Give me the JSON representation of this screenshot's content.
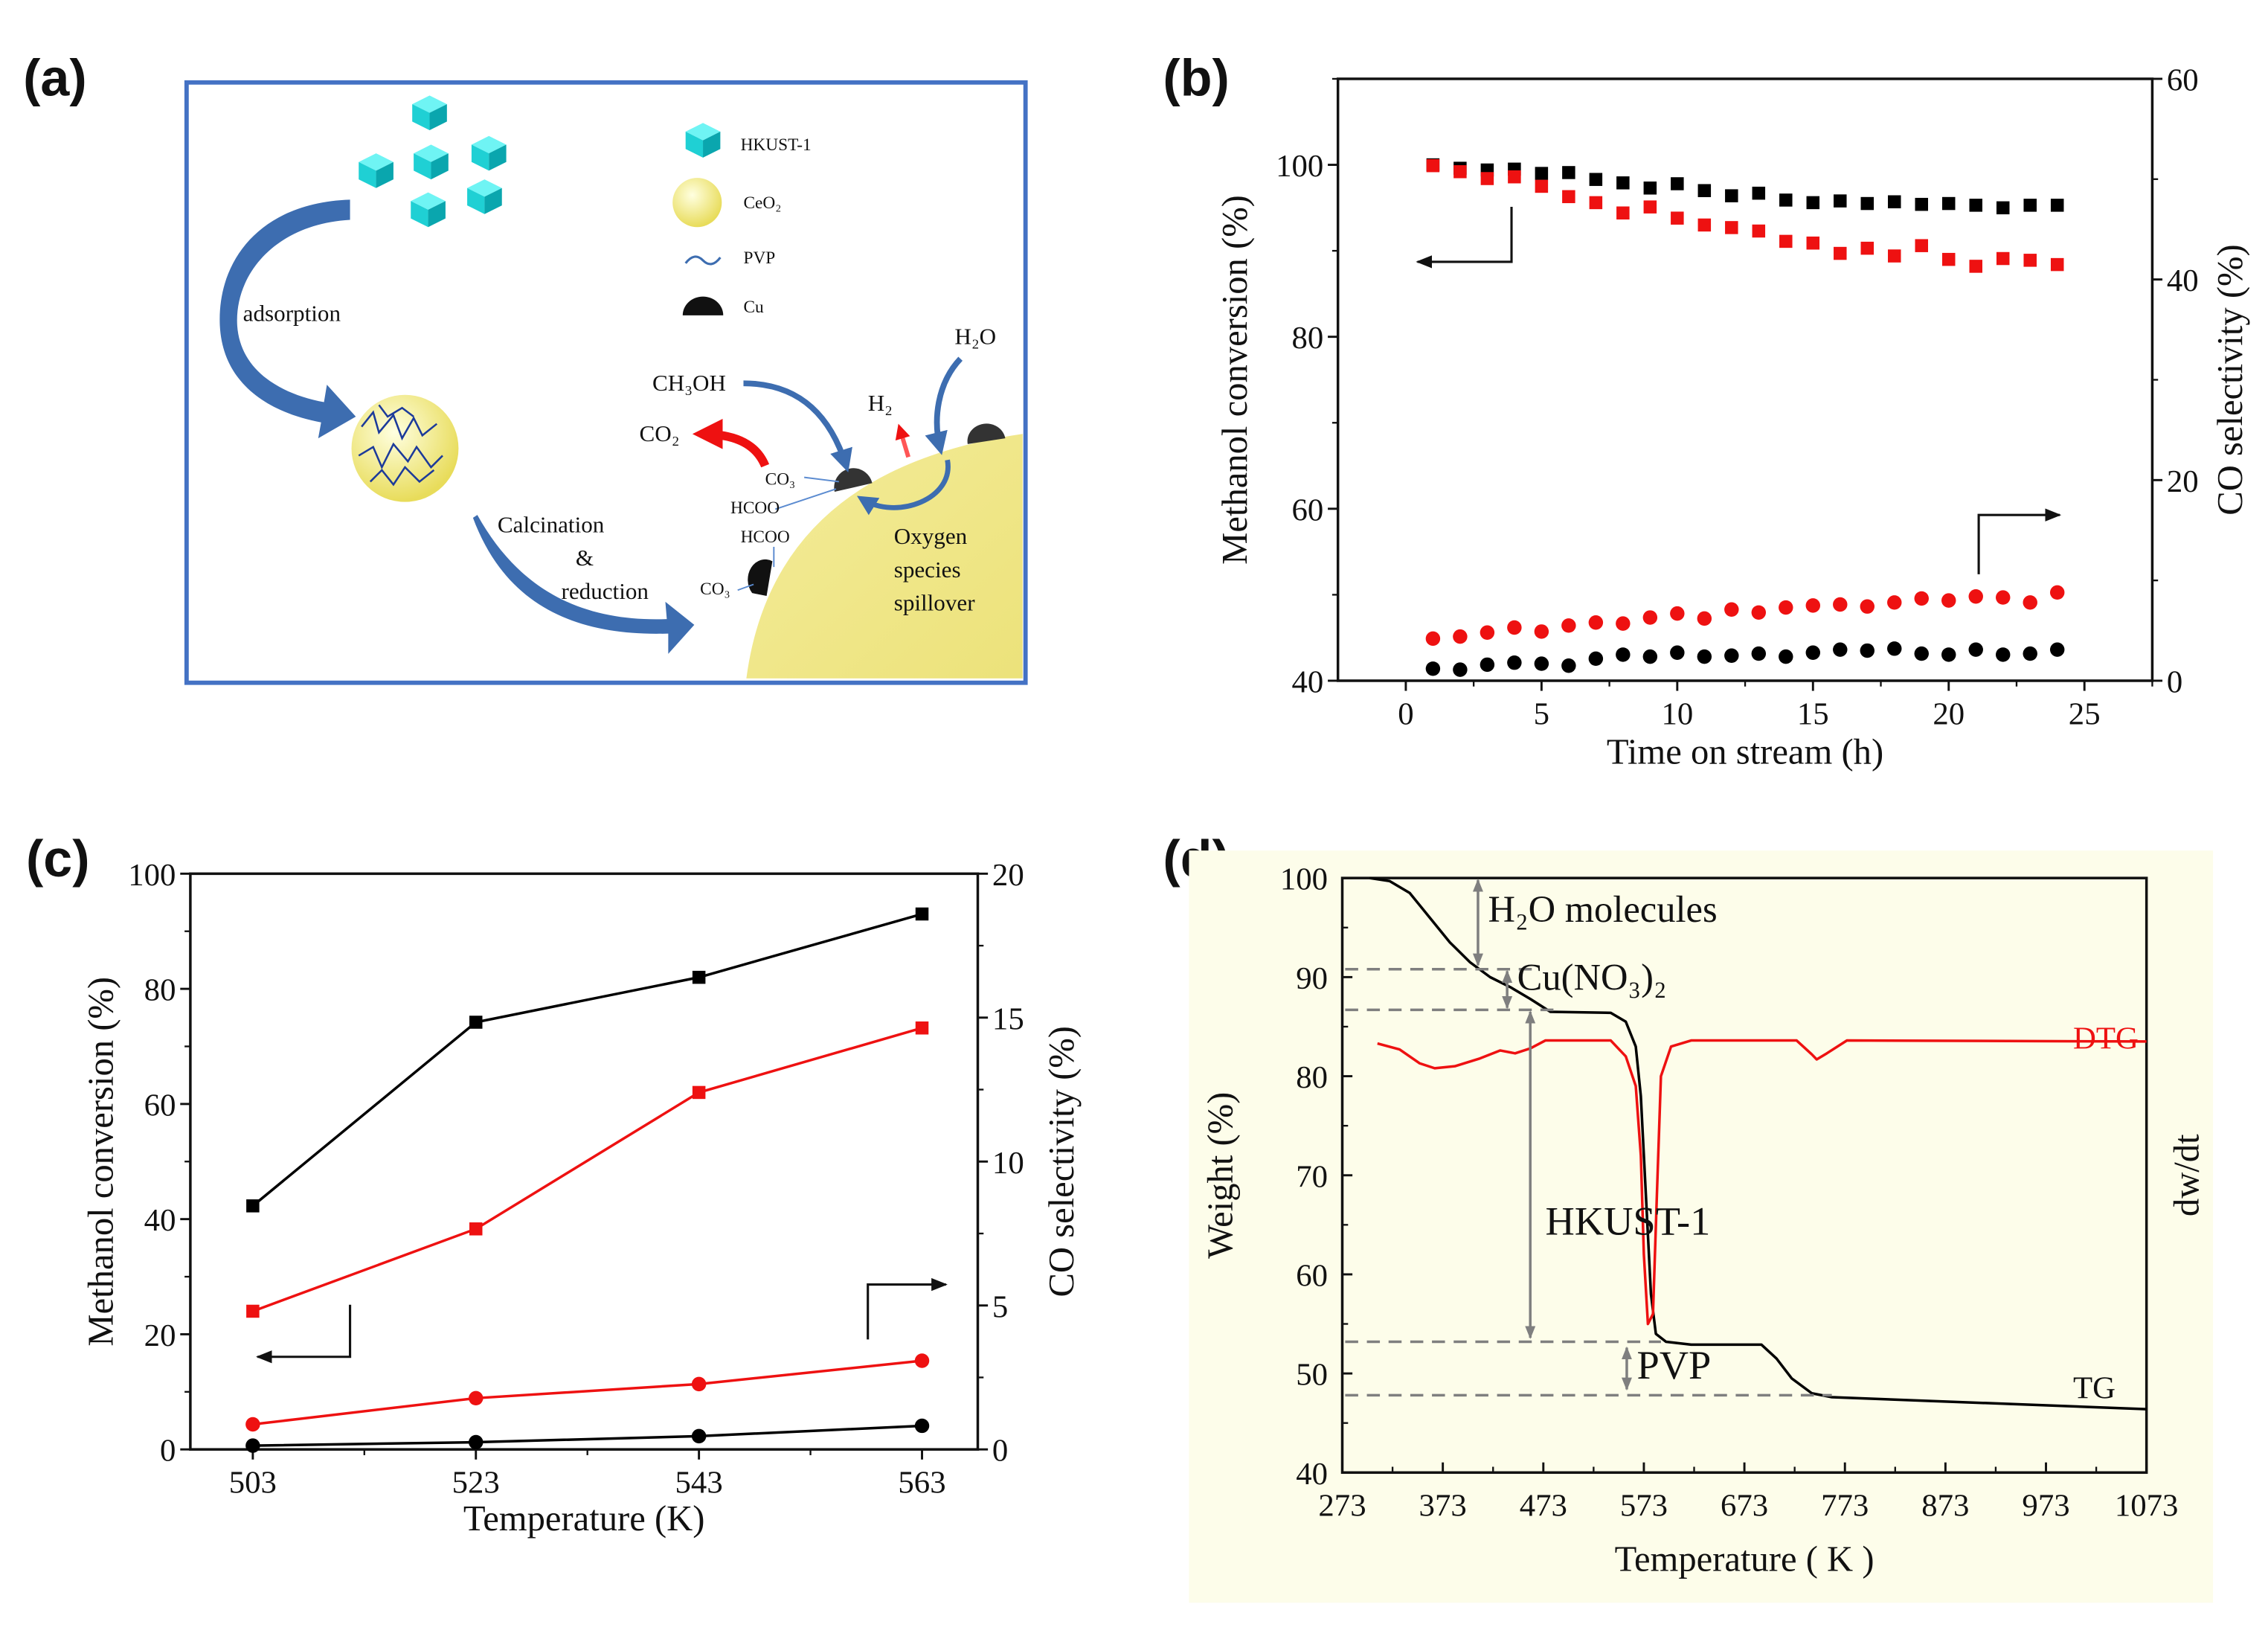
{
  "panel_labels": [
    "(a)",
    "(b)",
    "(c)",
    "(d)"
  ],
  "diagram": {
    "legend": [
      "HKUST-1",
      "CeO₂",
      "PVP",
      "Cu"
    ],
    "step1": "adsorption",
    "step2": [
      "Calcination",
      "&",
      "reduction"
    ],
    "species": {
      "methanol": "CH₃OH",
      "co2": "CO₂",
      "h2": "H₂",
      "h2o": "H₂O",
      "co3_top": "CO₃",
      "hcoo_1": "HCOO",
      "hcoo_2": "HCOO",
      "co3_bottom": "CO₃"
    },
    "spillover": [
      "Oxygen",
      "species",
      "spillover"
    ],
    "colors": {
      "frame": "#4472c4",
      "cube": "#19c8cc",
      "ceo2": "#f2e88a",
      "arrow": "#3d6db0",
      "red_arrow": "#ee1111"
    }
  },
  "chart_data": [
    {
      "type": "scatter",
      "panel": "(b)",
      "xlabel": "Time on stream (h)",
      "ylabel": "Methanol conversion (%)",
      "y2label": "CO selectivity (%)",
      "xlim": [
        -2.5,
        27.5
      ],
      "ylim": [
        40,
        110
      ],
      "y2lim": [
        0,
        60
      ],
      "xticks": [
        0,
        5,
        10,
        15,
        20,
        25
      ],
      "yticks": [
        40,
        60,
        80,
        100
      ],
      "y2ticks": [
        0,
        20,
        40,
        60
      ],
      "grid": false,
      "x": [
        1,
        2,
        3,
        4,
        5,
        6,
        7,
        8,
        9,
        10,
        11,
        12,
        13,
        14,
        15,
        16,
        17,
        18,
        19,
        20,
        21,
        22,
        23,
        24
      ],
      "series": [
        {
          "axis": "left",
          "marker": "square",
          "color": "#000000",
          "values": [
            100,
            99.6,
            99.4,
            99.5,
            99,
            99.1,
            98.3,
            97.9,
            97.3,
            97.8,
            97,
            96.4,
            96.7,
            95.9,
            95.6,
            95.8,
            95.5,
            95.7,
            95.4,
            95.5,
            95.3,
            95,
            95.3,
            95.3
          ]
        },
        {
          "axis": "left",
          "marker": "square",
          "color": "#ee1111",
          "values": [
            99.9,
            99.2,
            98.4,
            98.6,
            97.5,
            96.3,
            95.6,
            94.4,
            95.1,
            93.8,
            93,
            92.7,
            92.3,
            91.1,
            90.9,
            89.7,
            90.3,
            89.4,
            90.6,
            89,
            88.2,
            89.1,
            88.9,
            88.4
          ]
        },
        {
          "axis": "right",
          "marker": "circle",
          "color": "#ee1111",
          "values": [
            4.2,
            4.4,
            4.8,
            5.3,
            4.9,
            5.5,
            5.8,
            5.7,
            6.3,
            6.7,
            6.2,
            7.1,
            6.8,
            7.3,
            7.5,
            7.6,
            7.4,
            7.8,
            8.2,
            8,
            8.4,
            8.3,
            7.8,
            8.8
          ]
        },
        {
          "axis": "right",
          "marker": "circle",
          "color": "#000000",
          "values": [
            1.2,
            1.1,
            1.6,
            1.8,
            1.7,
            1.5,
            2.2,
            2.6,
            2.4,
            2.8,
            2.4,
            2.5,
            2.7,
            2.4,
            2.8,
            3.1,
            3,
            3.2,
            2.7,
            2.6,
            3.1,
            2.6,
            2.7,
            3.1
          ]
        }
      ]
    },
    {
      "type": "line",
      "panel": "(c)",
      "xlabel": "Temperature (K)",
      "ylabel": "Methanol conversion (%)",
      "y2label": "CO selectivity (%)",
      "xlim": [
        497.4,
        568
      ],
      "ylim": [
        0,
        100
      ],
      "y2lim": [
        0,
        20
      ],
      "xticks": [
        503,
        523,
        543,
        563
      ],
      "yticks": [
        0,
        20,
        40,
        60,
        80,
        100
      ],
      "y2ticks": [
        0,
        5,
        10,
        15,
        20
      ],
      "grid": false,
      "x": [
        503,
        523,
        543,
        563
      ],
      "series": [
        {
          "axis": "left",
          "marker": "square",
          "color": "#000000",
          "values": [
            42.3,
            74.2,
            82,
            93
          ]
        },
        {
          "axis": "left",
          "marker": "square",
          "color": "#ee1111",
          "values": [
            24,
            38.3,
            62,
            73.2
          ]
        },
        {
          "axis": "right",
          "marker": "circle",
          "color": "#ee1111",
          "values": [
            0.87,
            1.78,
            2.27,
            3.08
          ]
        },
        {
          "axis": "right",
          "marker": "circle",
          "color": "#000000",
          "values": [
            0.13,
            0.25,
            0.46,
            0.82
          ]
        }
      ]
    },
    {
      "type": "line",
      "panel": "(d)",
      "xlabel": "Temperature ( K )",
      "ylabel": "Weight (%)",
      "y2label": "dw/dt",
      "xlim": [
        273,
        1073
      ],
      "ylim": [
        40,
        100
      ],
      "xticks": [
        273,
        373,
        473,
        573,
        673,
        773,
        873,
        973,
        1073
      ],
      "yticks": [
        40,
        50,
        60,
        70,
        80,
        90,
        100
      ],
      "grid": false,
      "series": [
        {
          "name": "TG",
          "color": "#000000",
          "points": [
            [
              300,
              100
            ],
            [
              320,
              99.7
            ],
            [
              340,
              98.5
            ],
            [
              360,
              96
            ],
            [
              380,
              93.5
            ],
            [
              400,
              91.5
            ],
            [
              420,
              90
            ],
            [
              440,
              89
            ],
            [
              460,
              87.8
            ],
            [
              480,
              86.5
            ],
            [
              540,
              86.4
            ],
            [
              555,
              85.5
            ],
            [
              565,
              83
            ],
            [
              570,
              78
            ],
            [
              575,
              68
            ],
            [
              580,
              58
            ],
            [
              585,
              54
            ],
            [
              595,
              53.2
            ],
            [
              620,
              52.9
            ],
            [
              690,
              52.9
            ],
            [
              705,
              51.5
            ],
            [
              720,
              49.5
            ],
            [
              740,
              48
            ],
            [
              760,
              47.6
            ],
            [
              1073,
              46.4
            ]
          ]
        },
        {
          "name": "DTG",
          "color": "#ee1111",
          "points": [
            [
              308,
              83.3
            ],
            [
              330,
              82.7
            ],
            [
              350,
              81.3
            ],
            [
              365,
              80.8
            ],
            [
              385,
              81
            ],
            [
              410,
              81.8
            ],
            [
              430,
              82.6
            ],
            [
              445,
              82.3
            ],
            [
              460,
              82.8
            ],
            [
              475,
              83.6
            ],
            [
              540,
              83.6
            ],
            [
              555,
              82
            ],
            [
              565,
              79
            ],
            [
              570,
              72
            ],
            [
              573,
              62
            ],
            [
              577,
              55
            ],
            [
              582,
              56
            ],
            [
              586,
              68
            ],
            [
              590,
              80
            ],
            [
              600,
              83
            ],
            [
              620,
              83.6
            ],
            [
              725,
              83.6
            ],
            [
              740,
              82.2
            ],
            [
              745,
              81.7
            ],
            [
              755,
              82.3
            ],
            [
              775,
              83.6
            ],
            [
              1073,
              83.5
            ]
          ]
        }
      ],
      "annotations": [
        "H₂O molecules",
        "Cu(NO₃)₂",
        "HKUST-1",
        "PVP"
      ]
    }
  ]
}
